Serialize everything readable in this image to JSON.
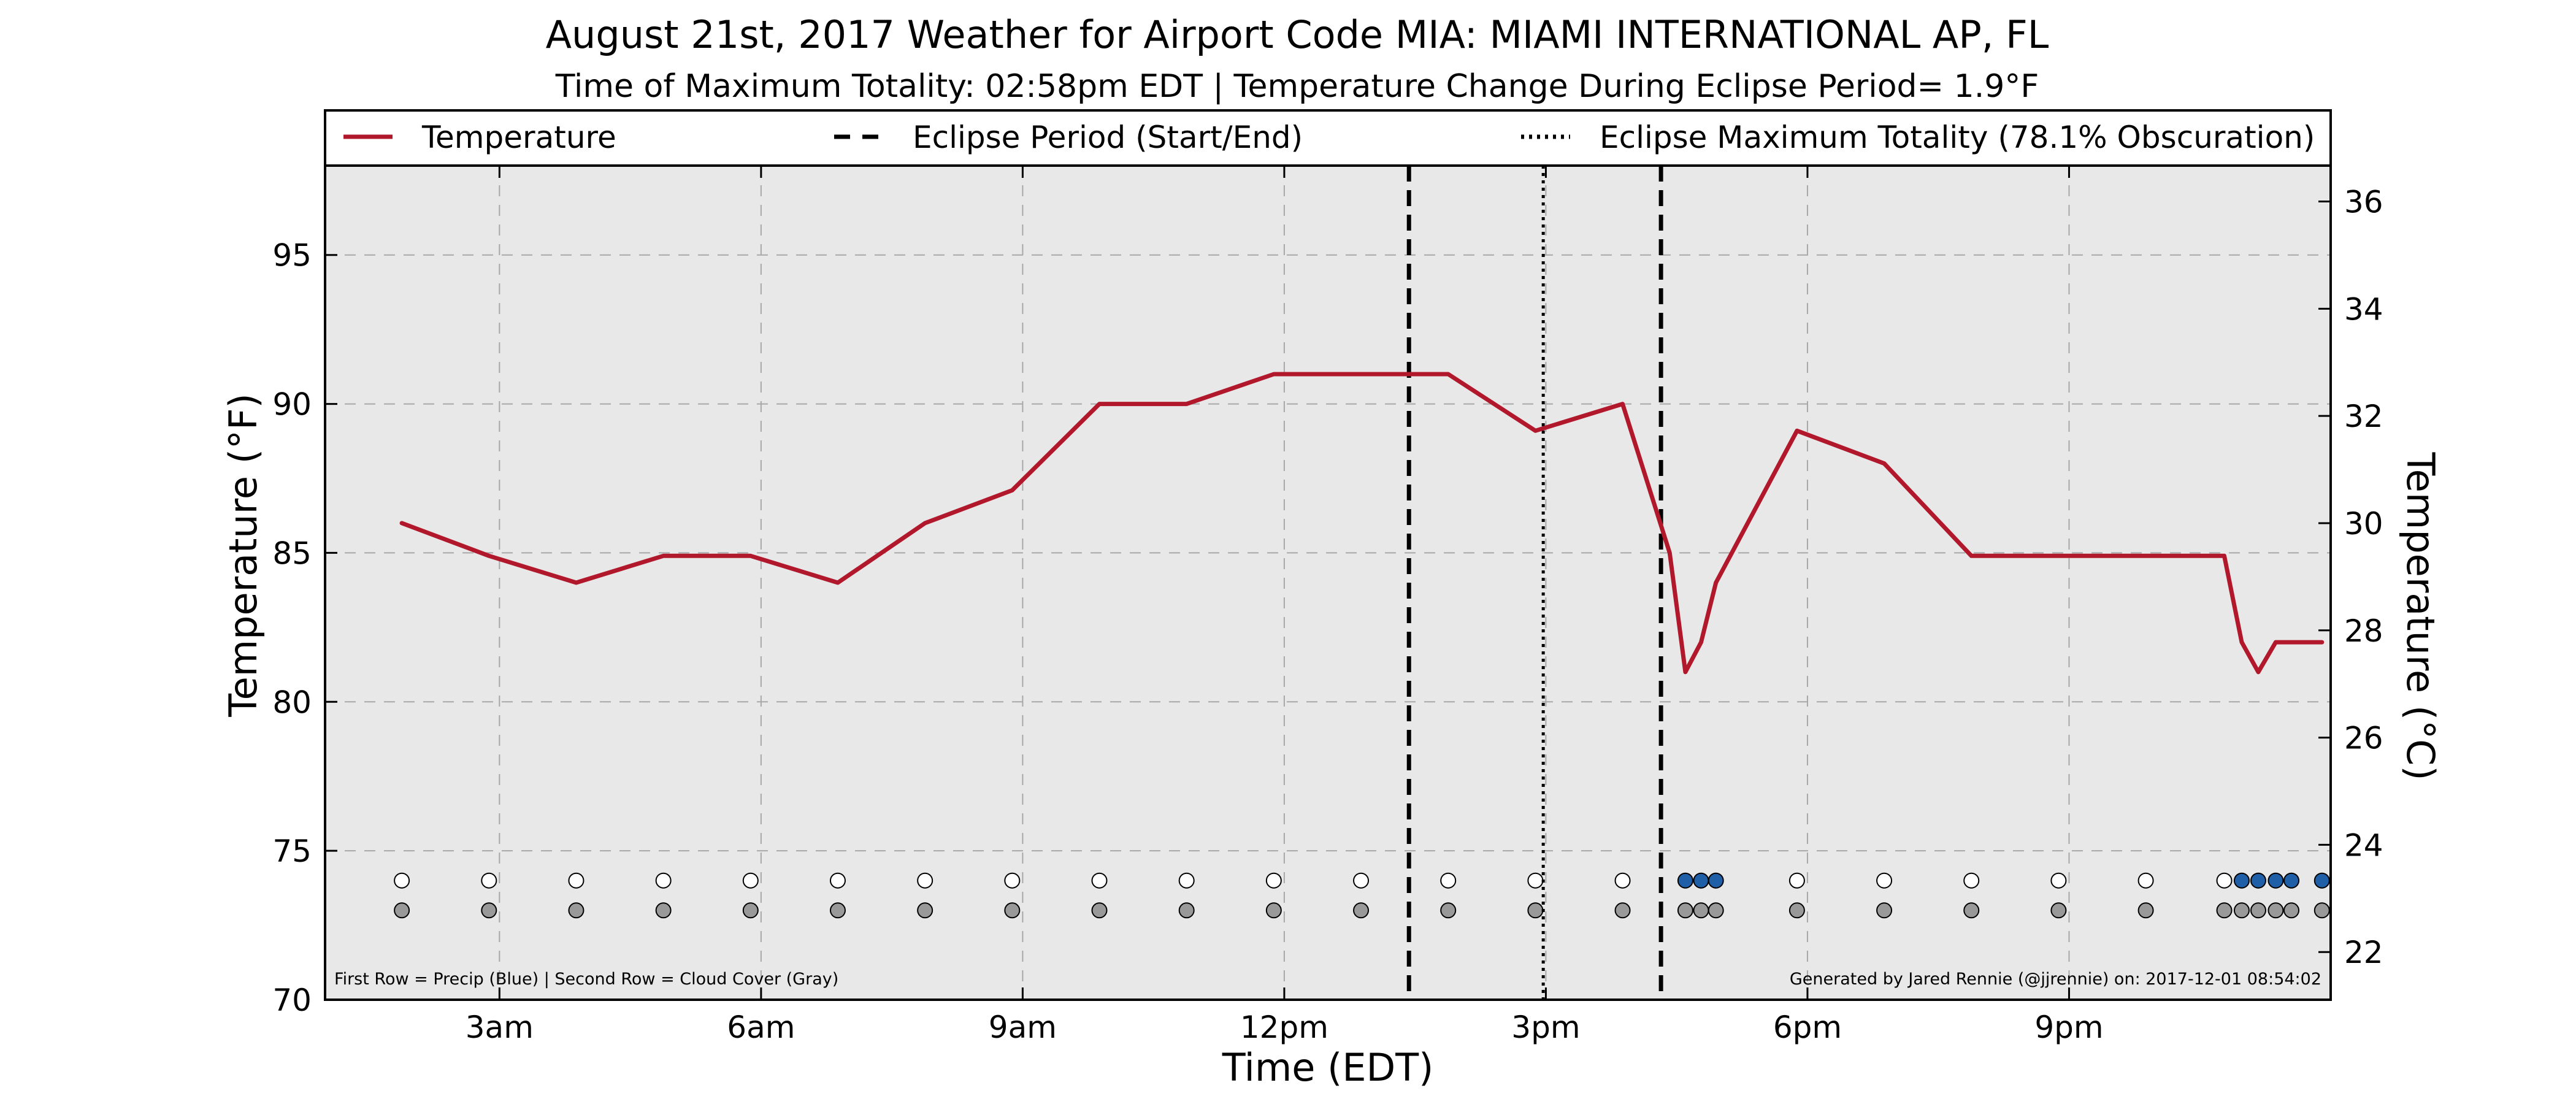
{
  "chart_data": {
    "type": "line",
    "title": "August 21st, 2017 Weather for Airport Code MIA: MIAMI INTERNATIONAL AP, FL",
    "subtitle": "Time of Maximum Totality: 02:58pm EDT | Temperature Change During Eclipse Period= 1.9°F",
    "xlabel": "Time (EDT)",
    "ylabel": "Temperature (°F)",
    "y2label": "Temperature (°C)",
    "xlim": [
      1.0,
      24.0
    ],
    "ylim": [
      70,
      98
    ],
    "y2lim": [
      21.11,
      36.67
    ],
    "x_ticks": [
      {
        "value": 3,
        "label": "3am"
      },
      {
        "value": 6,
        "label": "6am"
      },
      {
        "value": 9,
        "label": "9am"
      },
      {
        "value": 12,
        "label": "12pm"
      },
      {
        "value": 15,
        "label": "3pm"
      },
      {
        "value": 18,
        "label": "6pm"
      },
      {
        "value": 21,
        "label": "9pm"
      }
    ],
    "y_ticks": [
      70,
      75,
      80,
      85,
      90,
      95
    ],
    "y2_ticks": [
      22,
      24,
      26,
      28,
      30,
      32,
      34,
      36
    ],
    "grid": true,
    "legend": {
      "placement": "top",
      "entries": [
        {
          "label": "Temperature",
          "style": "solid",
          "color": "#b2182b"
        },
        {
          "label": "Eclipse Period (Start/End)",
          "style": "dashed",
          "color": "#000000"
        },
        {
          "label": "Eclipse Maximum Totality (78.1% Obscuration)",
          "style": "dotted",
          "color": "#000000"
        }
      ]
    },
    "series": [
      {
        "name": "Temperature",
        "color": "#b2182b",
        "x": [
          1.88,
          2.88,
          3.88,
          4.88,
          5.25,
          5.88,
          6.88,
          7.88,
          8.88,
          9.88,
          10.88,
          11.88,
          12.88,
          13.88,
          14.88,
          15.88,
          16.42,
          16.6,
          16.78,
          16.95,
          17.88,
          18.88,
          19.88,
          20.88,
          21.88,
          22.37,
          22.58,
          22.78,
          22.98,
          23.17,
          23.37,
          23.9
        ],
        "y": [
          86,
          84.9,
          84,
          84.9,
          84.9,
          84.9,
          84,
          86,
          87.1,
          90,
          90,
          91,
          91,
          91,
          89.1,
          90,
          85,
          81,
          82,
          84,
          89.1,
          88,
          84.9,
          84.9,
          84.9,
          84.9,
          84.9,
          84.9,
          82,
          81,
          82,
          82
        ]
      }
    ],
    "eclipse": {
      "start": 13.43,
      "max": 14.97,
      "end": 16.32
    },
    "status_rows": {
      "precip_y": 74,
      "cloud_y": 73,
      "obs_x": [
        1.88,
        2.88,
        3.88,
        4.88,
        5.88,
        6.88,
        7.88,
        8.88,
        9.88,
        10.88,
        11.88,
        12.88,
        13.88,
        14.88,
        15.88,
        16.6,
        16.78,
        16.95,
        17.88,
        18.88,
        19.88,
        20.88,
        21.88,
        22.78,
        22.98,
        23.17,
        23.37,
        23.55,
        23.9
      ],
      "precip": [
        0,
        0,
        0,
        0,
        0,
        0,
        0,
        0,
        0,
        0,
        0,
        0,
        0,
        0,
        0,
        1,
        1,
        1,
        0,
        0,
        0,
        0,
        0,
        0,
        1,
        1,
        1,
        1,
        1
      ],
      "precip_color": "#1f5fa8",
      "none_color": "#ffffff",
      "cloud_color": "#999999"
    },
    "footnote_left": "First Row = Precip (Blue) | Second Row = Cloud Cover (Gray)",
    "footnote_right": "Generated by Jared Rennie (@jjrennie) on: 2017-12-01 08:54:02",
    "plot_background": "#e8e8e8"
  }
}
